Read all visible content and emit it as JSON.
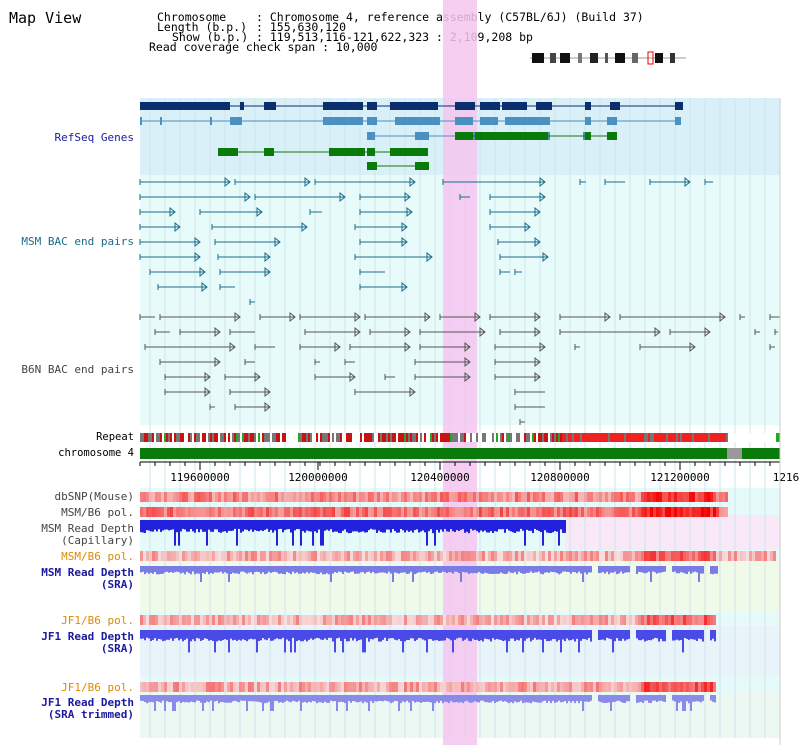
{
  "page": {
    "title": "Map View"
  },
  "header": {
    "chromosome_key": "Chromosome",
    "chromosome_val": ": Chromosome 4, reference assembly (C57BL/6J) (Build 37)",
    "length_key": "Length (b.p.)",
    "length_val": ": 155,630,120",
    "show_key": "Show (b.p.)",
    "show_val": ": 119,513,116-121,622,323 : 2,109,208 bp",
    "coverage_line": "Read coverage check span : 10,000"
  },
  "tracks": {
    "refseq": "RefSeq Genes",
    "msm_bac": "MSM BAC end pairs",
    "b6n_bac": "B6N BAC end pairs",
    "repeat": "Repeat",
    "chromosome": "chromosome 4",
    "dbsnp": "dbSNP(Mouse)",
    "msm_b6_pol_1": "MSM/B6 pol.",
    "msm_read_depth_cap_1": "MSM Read Depth",
    "msm_read_depth_cap_2": "(Capillary)",
    "msm_b6_pol_2": "MSM/B6 pol.",
    "msm_read_depth_sra_1": "MSM Read Depth",
    "msm_read_depth_sra_2": "(SRA)",
    "jf1_b6_pol_1": "JF1/B6 pol.",
    "jf1_read_depth_sra_1": "JF1 Read Depth",
    "jf1_read_depth_sra_2": "(SRA)",
    "jf1_b6_pol_2": "JF1/B6 pol.",
    "jf1_read_depth_trim_1": "JF1 Read Depth",
    "jf1_read_depth_trim_2": "(SRA trimmed)"
  },
  "axis": {
    "ticks": [
      "119600000",
      "120000000",
      "120400000",
      "120800000",
      "121200000",
      "1216"
    ]
  },
  "colors": {
    "refseq_dark": "#0a2e6e",
    "refseq_light": "#4a90c0",
    "refseq_green": "#0a7a0a",
    "msm_bac": "#1a6b8a",
    "b6n_bac": "#555555",
    "highlight": "#f4c6f0",
    "label_blue": "#1a1aa0",
    "label_orange": "#e08a00",
    "label_teal": "#1a6b8a"
  }
}
